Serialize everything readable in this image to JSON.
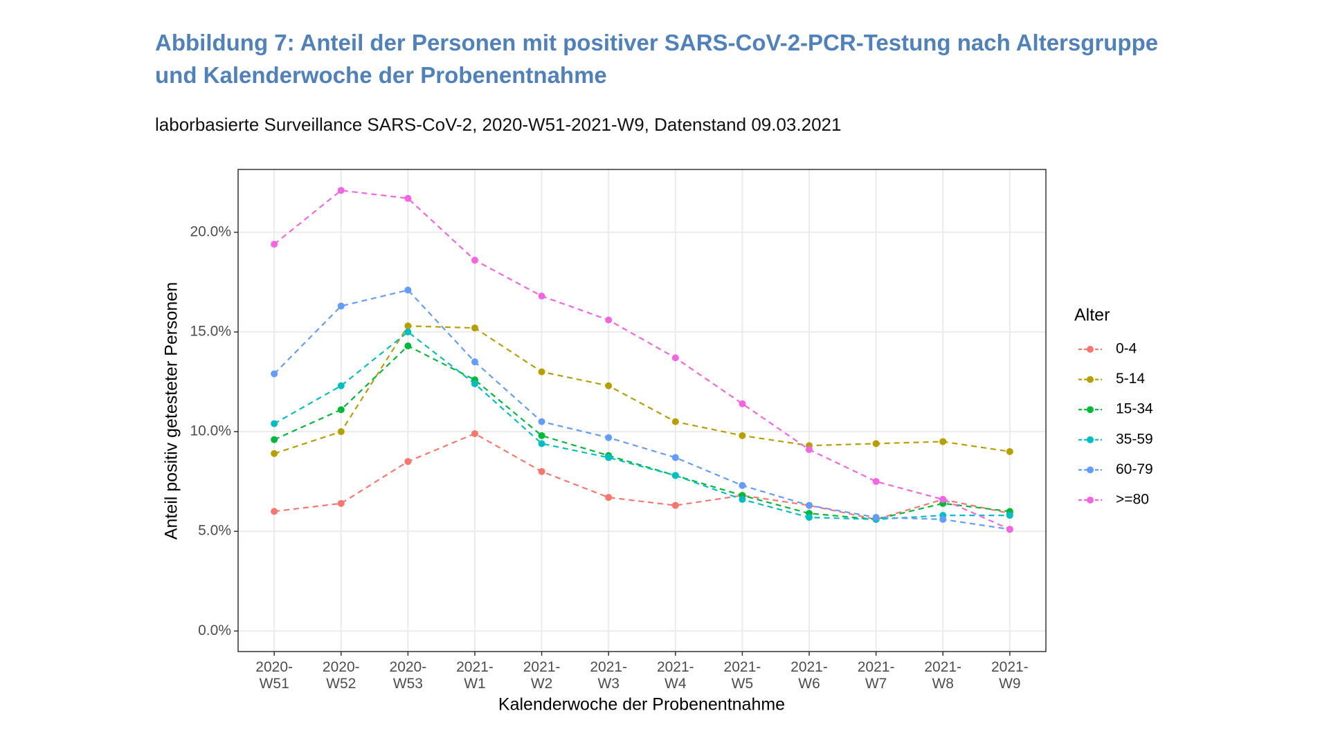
{
  "chart_data": {
    "type": "line",
    "title": "Abbildung 7: Anteil der Personen mit positiver SARS-CoV-2-PCR-Testung nach Altersgruppe und Kalenderwoche der Probenentnahme",
    "subtitle": "laborbasierte Surveillance SARS-CoV-2, 2020-W51-2021-W9, Datenstand 09.03.2021",
    "x_label": "Kalenderwoche der Probenentnahme",
    "y_label": "Anteil positiv getesteter Personen",
    "legend_title": "Alter",
    "legend_position": "right",
    "grid": true,
    "line_style": "dashed",
    "categories": [
      "2020-W51",
      "2020-W52",
      "2020-W53",
      "2021-W1",
      "2021-W2",
      "2021-W3",
      "2021-W4",
      "2021-W5",
      "2021-W6",
      "2021-W7",
      "2021-W8",
      "2021-W9"
    ],
    "ylim": [
      -1.03,
      23.15
    ],
    "yticks": [
      {
        "value": 0,
        "label": "0.0%"
      },
      {
        "value": 5,
        "label": "5.0%"
      },
      {
        "value": 10,
        "label": "10.0%"
      },
      {
        "value": 15,
        "label": "15.0%"
      },
      {
        "value": 20,
        "label": "20.0%"
      }
    ],
    "series": [
      {
        "name": "0-4",
        "color": "#F8766D",
        "values": [
          6.0,
          6.4,
          8.5,
          9.9,
          8.0,
          6.7,
          6.3,
          6.8,
          6.3,
          5.6,
          6.6,
          5.9
        ]
      },
      {
        "name": "5-14",
        "color": "#B79F00",
        "values": [
          8.9,
          10.0,
          15.3,
          15.2,
          13.0,
          12.3,
          10.5,
          9.8,
          9.3,
          9.4,
          9.5,
          9.0
        ]
      },
      {
        "name": "15-34",
        "color": "#00BA38",
        "values": [
          9.6,
          11.1,
          14.3,
          12.6,
          9.8,
          8.8,
          7.8,
          6.8,
          5.9,
          5.6,
          6.4,
          6.0
        ]
      },
      {
        "name": "35-59",
        "color": "#00BFC4",
        "values": [
          10.4,
          12.3,
          15.0,
          12.4,
          9.4,
          8.7,
          7.8,
          6.6,
          5.7,
          5.6,
          5.8,
          5.8
        ]
      },
      {
        "name": "60-79",
        "color": "#619CFF",
        "values": [
          12.9,
          16.3,
          17.1,
          13.5,
          10.5,
          9.7,
          8.7,
          7.3,
          6.3,
          5.7,
          5.6,
          5.1
        ]
      },
      {
        "name": ">=80",
        "color": "#F564E3",
        "values": [
          19.4,
          22.1,
          21.7,
          18.6,
          16.8,
          15.6,
          13.7,
          11.4,
          9.1,
          7.5,
          6.6,
          5.1
        ]
      }
    ]
  }
}
